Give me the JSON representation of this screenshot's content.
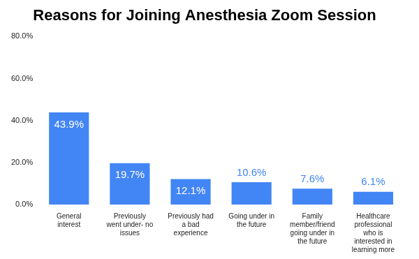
{
  "chart_data": {
    "type": "bar",
    "title": "Reasons for Joining Anesthesia Zoom Session",
    "categories": [
      "General interest",
      "Previously went under- no issues",
      "Previously had a bad experience",
      "Going under in the future",
      "Family member/friend going under in the future",
      "Healthcare professional who is interested in learning more"
    ],
    "values": [
      43.9,
      19.7,
      12.1,
      10.6,
      7.6,
      6.1
    ],
    "value_labels": [
      "43.9%",
      "19.7%",
      "12.1%",
      "10.6%",
      "7.6%",
      "6.1%"
    ],
    "color": "#4285f4",
    "ylim": [
      0,
      80
    ],
    "yticks": [
      {
        "value": 0,
        "label": "0.0%"
      },
      {
        "value": 20,
        "label": "20.0%"
      },
      {
        "value": 40,
        "label": "40.0%"
      },
      {
        "value": 60,
        "label": "60.0%"
      },
      {
        "value": 80,
        "label": "80.0%"
      }
    ],
    "grid": false,
    "data_labels": true
  }
}
